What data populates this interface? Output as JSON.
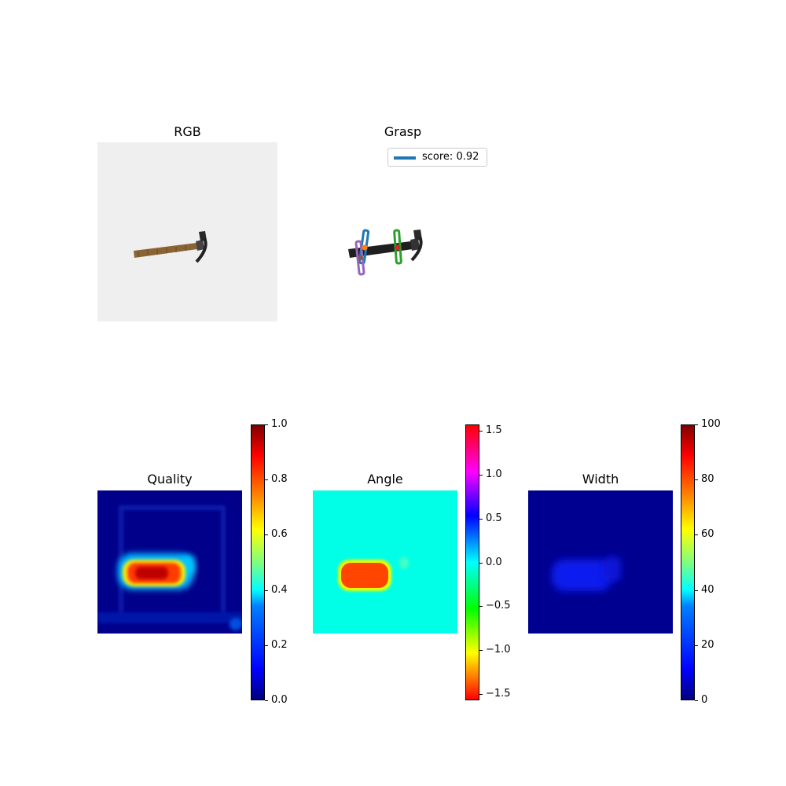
{
  "panels": {
    "rgb": {
      "title": "RGB"
    },
    "grasp": {
      "title": "Grasp",
      "legend_label": "score: 0.92",
      "legend_color": "#1f77b4"
    },
    "quality": {
      "title": "Quality"
    },
    "angle": {
      "title": "Angle"
    },
    "width": {
      "title": "Width"
    }
  },
  "colorbars": {
    "quality": {
      "colormap": "jet",
      "range": [
        0,
        1
      ],
      "ticks": [
        "1.0",
        "0.8",
        "0.6",
        "0.4",
        "0.2",
        "0.0"
      ]
    },
    "angle": {
      "colormap": "hsv",
      "range": [
        -1.57,
        1.57
      ],
      "ticks": [
        "1.5",
        "1.0",
        "0.5",
        "0.0",
        "−0.5",
        "−1.0",
        "−1.5"
      ]
    },
    "width": {
      "colormap": "jet",
      "range": [
        0,
        100
      ],
      "ticks": [
        "100",
        "80",
        "60",
        "40",
        "20",
        "0"
      ]
    }
  },
  "grasp_markers": [
    {
      "color": "#1f77b4"
    },
    {
      "color": "#2ca02c"
    },
    {
      "color": "#9467bd"
    }
  ]
}
